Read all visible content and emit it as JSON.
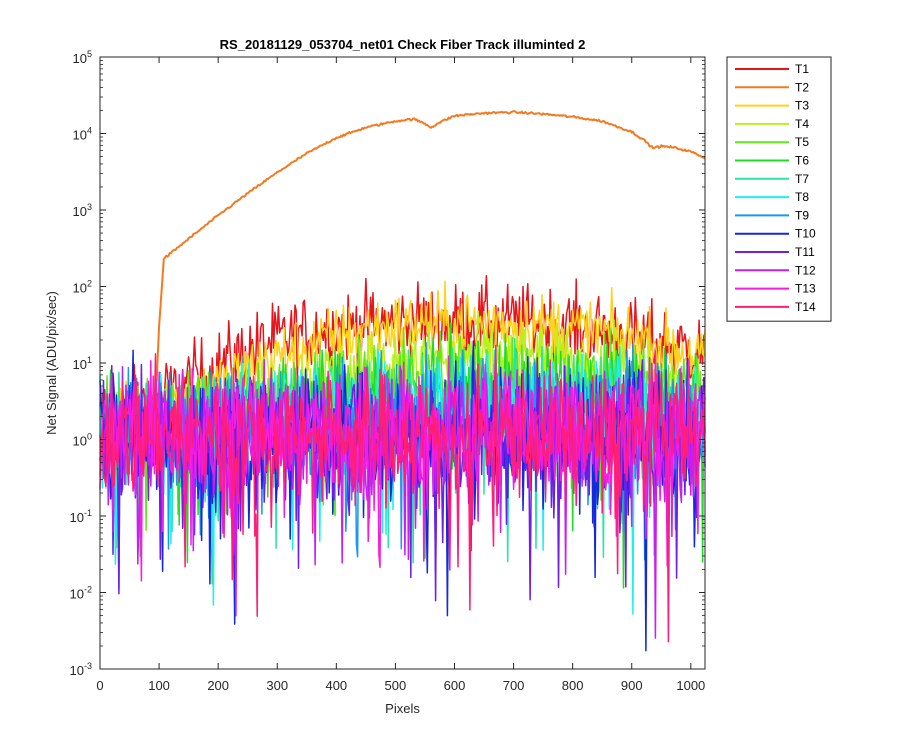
{
  "chart_data": {
    "type": "line",
    "title": "RS_20181129_053704_net01   Check Fiber     Track illuminted 2",
    "xlabel": "Pixels",
    "ylabel": "Net Signal (ADU/pix/sec)",
    "xlim": [
      0,
      1024
    ],
    "ylim": [
      0.001,
      100000
    ],
    "yscale": "log",
    "x_ticks": [
      0,
      100,
      200,
      300,
      400,
      500,
      600,
      700,
      800,
      900,
      1000
    ],
    "y_ticks": [
      {
        "value": 0.001,
        "base": "10",
        "exp": "-3"
      },
      {
        "value": 0.01,
        "base": "10",
        "exp": "-2"
      },
      {
        "value": 0.1,
        "base": "10",
        "exp": "-1"
      },
      {
        "value": 1,
        "base": "10",
        "exp": "0"
      },
      {
        "value": 10,
        "base": "10",
        "exp": "1"
      },
      {
        "value": 100,
        "base": "10",
        "exp": "2"
      },
      {
        "value": 1000,
        "base": "10",
        "exp": "3"
      },
      {
        "value": 10000,
        "base": "10",
        "exp": "4"
      },
      {
        "value": 100000,
        "base": "10",
        "exp": "5"
      }
    ],
    "grid": false,
    "legend_position": "outside-top-right",
    "series": [
      {
        "name": "T1",
        "color": "#e8141c",
        "noise": 0.35,
        "x": [
          0,
          50,
          100,
          150,
          200,
          250,
          300,
          350,
          400,
          450,
          500,
          550,
          600,
          650,
          700,
          750,
          800,
          850,
          900,
          950,
          1024
        ],
        "y": [
          2.2,
          2.5,
          3.5,
          5.5,
          9,
          14,
          20,
          25,
          29,
          32,
          34,
          34.5,
          35,
          35,
          34,
          33,
          30,
          27,
          22,
          18,
          14
        ]
      },
      {
        "name": "T2",
        "color": "#f47a20",
        "noise": 0.01,
        "x": [
          0,
          50,
          80,
          95,
          100,
          108,
          150,
          200,
          250,
          300,
          350,
          400,
          450,
          500,
          530,
          550,
          560,
          575,
          600,
          650,
          700,
          750,
          800,
          850,
          900,
          920,
          935,
          950,
          970,
          1000,
          1024
        ],
        "y": [
          2.5,
          2.8,
          3.2,
          4,
          30,
          230,
          420,
          850,
          1650,
          3100,
          5500,
          8800,
          12000,
          14500,
          15500,
          13500,
          12000,
          14000,
          17000,
          18500,
          19000,
          18000,
          16500,
          14500,
          10500,
          8300,
          6500,
          6800,
          6600,
          5800,
          4800
        ]
      },
      {
        "name": "T3",
        "color": "#ffd21e",
        "noise": 0.3,
        "x": [
          0,
          50,
          100,
          150,
          200,
          250,
          300,
          350,
          400,
          450,
          500,
          550,
          600,
          650,
          700,
          750,
          800,
          850,
          900,
          950,
          1024
        ],
        "y": [
          1.8,
          2,
          2.5,
          3.5,
          5,
          8,
          12,
          17,
          22,
          27,
          31,
          33,
          34,
          34.5,
          33,
          31,
          28,
          25,
          21,
          17,
          12
        ]
      },
      {
        "name": "T4",
        "color": "#b9f01e",
        "noise": 0.35,
        "x": [
          0,
          50,
          100,
          150,
          200,
          250,
          300,
          350,
          400,
          450,
          500,
          550,
          600,
          650,
          700,
          750,
          800,
          850,
          900,
          950,
          1024
        ],
        "y": [
          1.5,
          1.7,
          1.9,
          2.1,
          2.5,
          3.2,
          4.2,
          5.5,
          7,
          8.5,
          10,
          11,
          11.8,
          12,
          11.5,
          10.5,
          9,
          8,
          6.8,
          5.8,
          4.5
        ]
      },
      {
        "name": "T5",
        "color": "#64e61e",
        "noise": 0.45,
        "x": [
          0,
          100,
          200,
          300,
          400,
          500,
          600,
          700,
          800,
          900,
          1024
        ],
        "y": [
          1.4,
          1.6,
          2.4,
          3.3,
          4.5,
          5.5,
          6.2,
          6.2,
          5.5,
          4.5,
          3.2
        ]
      },
      {
        "name": "T6",
        "color": "#1edc28",
        "noise": 0.45,
        "x": [
          0,
          100,
          200,
          300,
          400,
          500,
          600,
          700,
          800,
          900,
          1024
        ],
        "y": [
          1.3,
          1.5,
          2.1,
          2.8,
          3.5,
          4.2,
          4.6,
          4.6,
          4.1,
          3.4,
          2.6
        ]
      },
      {
        "name": "T7",
        "color": "#28e6a0",
        "noise": 0.5,
        "x": [
          0,
          200,
          400,
          600,
          800,
          1024
        ],
        "y": [
          1.2,
          1.6,
          2.6,
          3.2,
          2.9,
          2.1
        ]
      },
      {
        "name": "T8",
        "color": "#1ef0f0",
        "noise": 0.55,
        "x": [
          0,
          200,
          400,
          600,
          800,
          1024
        ],
        "y": [
          1.1,
          1.5,
          2.2,
          2.6,
          2.4,
          1.8
        ]
      },
      {
        "name": "T9",
        "color": "#1e96f0",
        "noise": 0.6,
        "x": [
          0,
          200,
          400,
          600,
          800,
          1024
        ],
        "y": [
          1.0,
          1.3,
          1.8,
          2.1,
          1.9,
          1.5
        ]
      },
      {
        "name": "T10",
        "color": "#1428dc",
        "noise": 0.65,
        "x": [
          0,
          1024
        ],
        "y": [
          1.1,
          1.1
        ]
      },
      {
        "name": "T11",
        "color": "#6e1ee6",
        "noise": 0.6,
        "x": [
          0,
          1024
        ],
        "y": [
          1.1,
          1.2
        ]
      },
      {
        "name": "T12",
        "color": "#c81ef0",
        "noise": 0.6,
        "x": [
          0,
          1024
        ],
        "y": [
          1.2,
          1.2
        ]
      },
      {
        "name": "T13",
        "color": "#f51edc",
        "noise": 0.6,
        "x": [
          0,
          1024
        ],
        "y": [
          1.3,
          1.4
        ]
      },
      {
        "name": "T14",
        "color": "#ff1e78",
        "noise": 0.6,
        "x": [
          0,
          1024
        ],
        "y": [
          1.2,
          1.2
        ]
      }
    ]
  }
}
